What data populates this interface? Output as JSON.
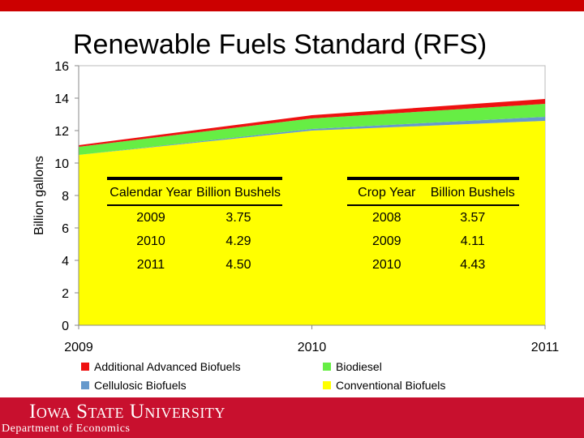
{
  "slide": {
    "title": "Renewable Fuels Standard (RFS)",
    "footer_logo": "Iowa State University",
    "footer_dept": "Department of Economics",
    "colors": {
      "topbar": "#cc0000",
      "footer": "#c8102e"
    }
  },
  "chart_data": {
    "type": "area",
    "stacked": true,
    "x": [
      "2009",
      "2010",
      "2011"
    ],
    "ylabel": "Billion gallons",
    "xlabel": "",
    "ylim": [
      0,
      16
    ],
    "yticks": [
      0,
      2,
      4,
      6,
      8,
      10,
      12,
      14,
      16
    ],
    "legend_position": "bottom",
    "series": [
      {
        "name": "Conventional Biofuels",
        "color": "#ffff00",
        "values": [
          10.5,
          12.0,
          12.6
        ]
      },
      {
        "name": "Cellulosic Biofuels",
        "color": "#6699cc",
        "values": [
          0.0,
          0.1,
          0.25
        ]
      },
      {
        "name": "Biodiesel",
        "color": "#66ee44",
        "values": [
          0.5,
          0.65,
          0.8
        ]
      },
      {
        "name": "Additional Advanced Biofuels",
        "color": "#ee1111",
        "values": [
          0.1,
          0.2,
          0.3
        ]
      }
    ],
    "legend_order": [
      "Additional Advanced Biofuels",
      "Biodiesel",
      "Cellulosic Biofuels",
      "Conventional Biofuels"
    ]
  },
  "tables": [
    {
      "headers": [
        "Calendar Year",
        "Billion Bushels"
      ],
      "rows": [
        [
          "2009",
          "3.75"
        ],
        [
          "2010",
          "4.29"
        ],
        [
          "2011",
          "4.50"
        ]
      ]
    },
    {
      "headers": [
        "Crop Year",
        "Billion Bushels"
      ],
      "rows": [
        [
          "2008",
          "3.57"
        ],
        [
          "2009",
          "4.11"
        ],
        [
          "2010",
          "4.43"
        ]
      ]
    }
  ]
}
